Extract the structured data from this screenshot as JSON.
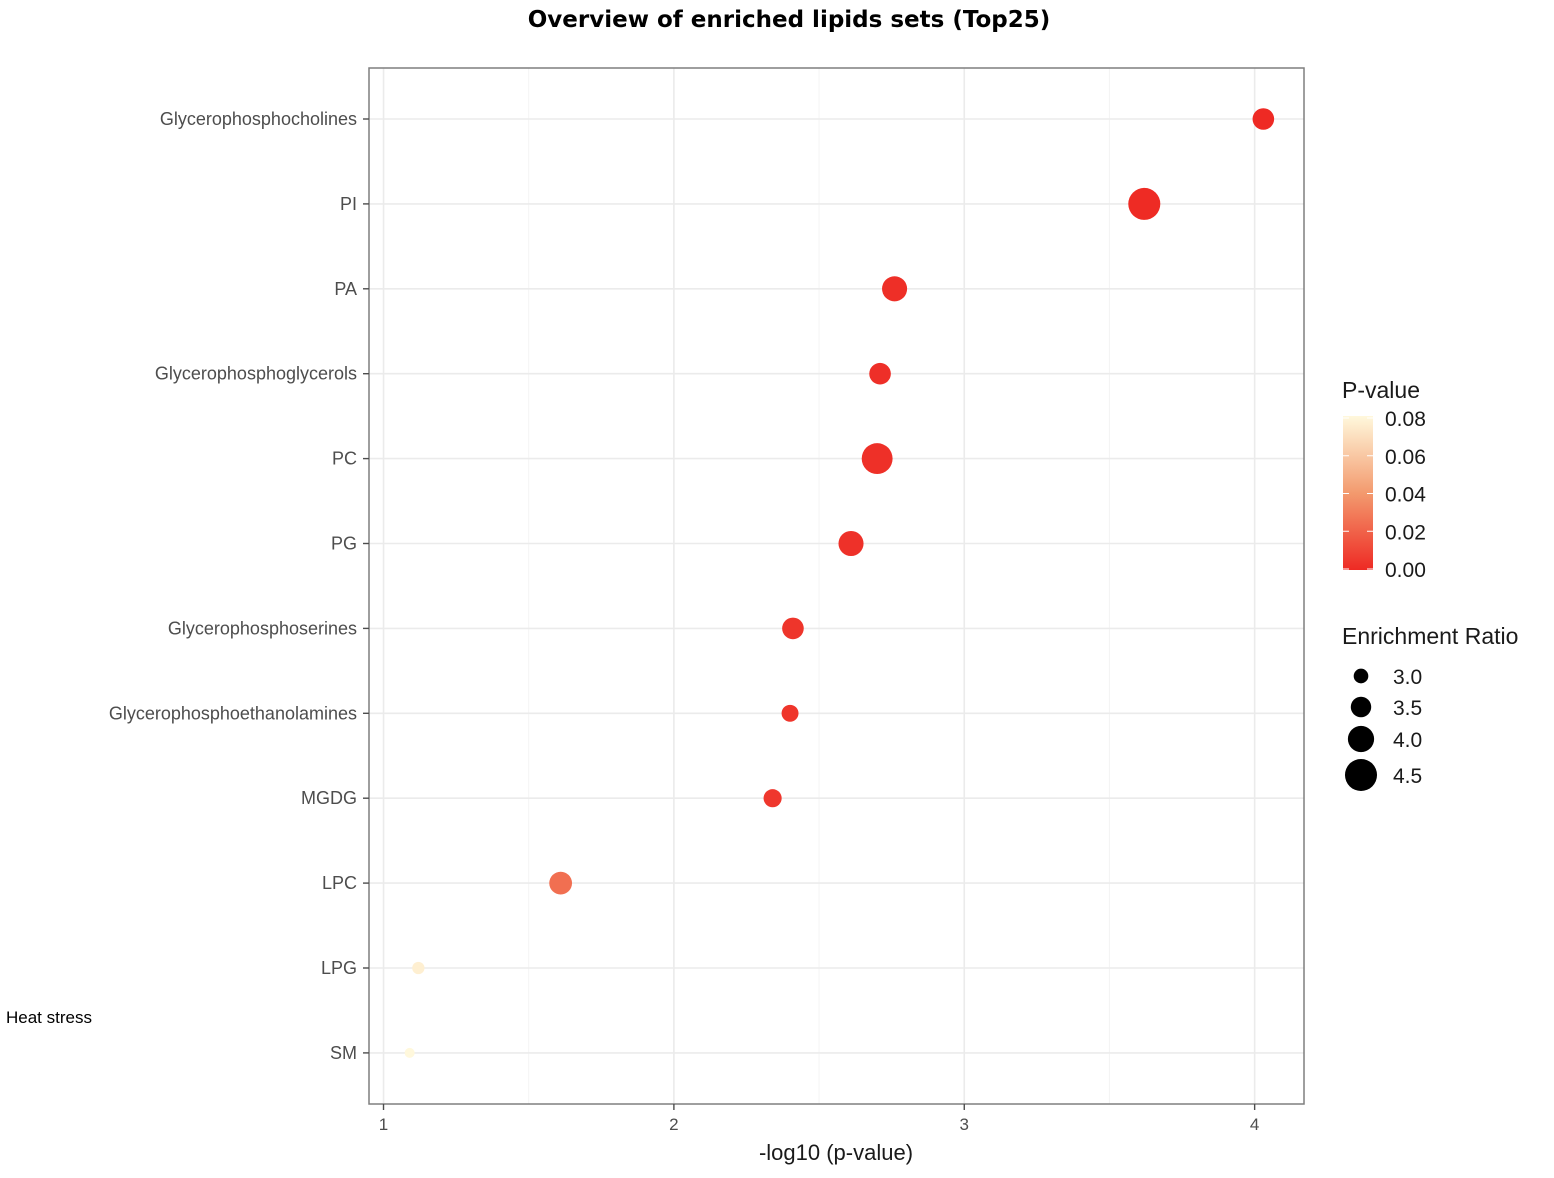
{
  "chart_data": {
    "type": "scatter",
    "title": "Overview of enriched lipids sets (Top25)",
    "xlabel": "-log10 (p-value)",
    "ylabel": "",
    "xlim": [
      0.95,
      4.17
    ],
    "xticks": [
      1,
      2,
      3,
      4
    ],
    "grid": true,
    "legend_position": "right",
    "categories": [
      "Glycerophosphocholines",
      "PI",
      "PA",
      "Glycerophosphoglycerols",
      "PC",
      "PG",
      "Glycerophosphoserines",
      "Glycerophosphoethanolamines",
      "MGDG",
      "LPC",
      "LPG",
      "SM"
    ],
    "points": [
      {
        "category": "Glycerophosphocholines",
        "x": 4.03,
        "p_value": 0.0001,
        "enrichment_ratio": 3.6
      },
      {
        "category": "PI",
        "x": 3.62,
        "p_value": 0.0002,
        "enrichment_ratio": 4.5
      },
      {
        "category": "PA",
        "x": 2.76,
        "p_value": 0.0017,
        "enrichment_ratio": 3.9
      },
      {
        "category": "Glycerophosphoglycerols",
        "x": 2.71,
        "p_value": 0.0019,
        "enrichment_ratio": 3.6
      },
      {
        "category": "PC",
        "x": 2.7,
        "p_value": 0.002,
        "enrichment_ratio": 4.4
      },
      {
        "category": "PG",
        "x": 2.61,
        "p_value": 0.0025,
        "enrichment_ratio": 3.9
      },
      {
        "category": "Glycerophosphoserines",
        "x": 2.41,
        "p_value": 0.0039,
        "enrichment_ratio": 3.6
      },
      {
        "category": "Glycerophosphoethanolamines",
        "x": 2.4,
        "p_value": 0.004,
        "enrichment_ratio": 3.2
      },
      {
        "category": "MGDG",
        "x": 2.34,
        "p_value": 0.0046,
        "enrichment_ratio": 3.3
      },
      {
        "category": "LPC",
        "x": 1.61,
        "p_value": 0.0245,
        "enrichment_ratio": 3.7
      },
      {
        "category": "LPG",
        "x": 1.12,
        "p_value": 0.076,
        "enrichment_ratio": 2.8
      },
      {
        "category": "SM",
        "x": 1.09,
        "p_value": 0.081,
        "enrichment_ratio": 2.6
      }
    ],
    "color_legend": {
      "title": "P-value",
      "labels": [
        "0.08",
        "0.06",
        "0.04",
        "0.02",
        "0.00"
      ],
      "range": [
        0.0,
        0.08
      ],
      "colors": [
        "#ee2a24",
        "#f39a6e",
        "#fff8dc"
      ]
    },
    "size_legend": {
      "title": "Enrichment Ratio",
      "labels": [
        "3.0",
        "3.5",
        "4.0",
        "4.5"
      ],
      "values": [
        3.0,
        3.5,
        4.0,
        4.5
      ]
    }
  },
  "annotation": "Heat stress"
}
